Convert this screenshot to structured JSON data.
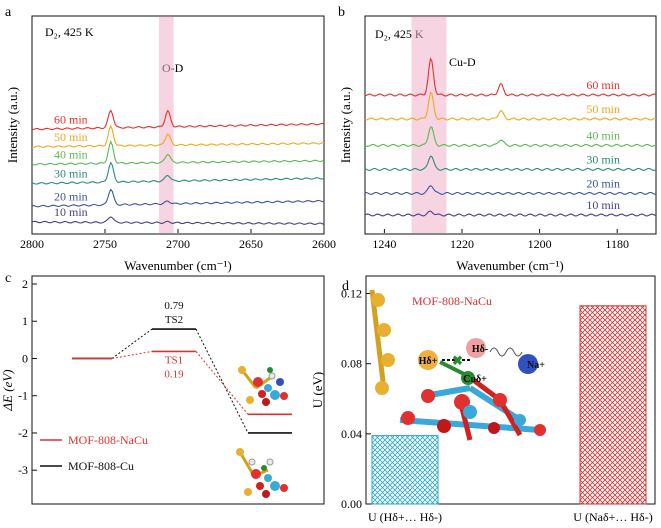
{
  "panels": {
    "a": {
      "label": "a",
      "condition": "D₂, 425 K",
      "band": "O-D"
    },
    "b": {
      "label": "b",
      "condition": "D₂, 425 K",
      "band": "Cu-D"
    },
    "c": {
      "label": "c"
    },
    "d": {
      "label": "d"
    }
  },
  "colors": {
    "t10": "#4b3f8c",
    "t20": "#3a56a0",
    "t30": "#2c8a80",
    "t40": "#5cb853",
    "t50": "#f0a818",
    "t60": "#e8302a",
    "pink": "#f0b0c8",
    "red": "#e03030",
    "black": "#111111",
    "bar_cyan": "#2aa8c8",
    "bar_red": "#d83030"
  },
  "chart_data": [
    {
      "id": "a",
      "type": "line",
      "xlabel": "Wavenumber (cm⁻¹)",
      "ylabel": "Intensity (a.u.)",
      "xlim": [
        2800,
        2600
      ],
      "xticks": [
        "2800",
        "2750",
        "2700",
        "2650",
        "2600"
      ],
      "xtick_values": [
        2800,
        2750,
        2700,
        2650,
        2600
      ],
      "highlight_x": [
        2713,
        2703
      ],
      "series": [
        {
          "name": "10 min",
          "color_key": "t10",
          "offset": 0.0,
          "peaks": [
            [
              2746,
              0.35
            ],
            [
              2707,
              0.05
            ]
          ],
          "slope": -0.1
        },
        {
          "name": "20 min",
          "color_key": "t20",
          "offset": 0.9,
          "peaks": [
            [
              2746,
              0.9
            ],
            [
              2707,
              0.15
            ]
          ],
          "slope": 0.3
        },
        {
          "name": "30 min",
          "color_key": "t30",
          "offset": 2.2,
          "peaks": [
            [
              2746,
              1.1
            ],
            [
              2707,
              0.35
            ]
          ],
          "slope": 0.3
        },
        {
          "name": "40 min",
          "color_key": "t40",
          "offset": 3.3,
          "peaks": [
            [
              2746,
              1.2
            ],
            [
              2707,
              0.5
            ]
          ],
          "slope": 0.2
        },
        {
          "name": "50 min",
          "color_key": "t50",
          "offset": 4.3,
          "peaks": [
            [
              2746,
              1.1
            ],
            [
              2707,
              0.65
            ]
          ],
          "slope": 0.2
        },
        {
          "name": "60 min",
          "color_key": "t60",
          "offset": 5.3,
          "peaks": [
            [
              2746,
              1.0
            ],
            [
              2707,
              0.9
            ]
          ],
          "slope": 0.3
        }
      ]
    },
    {
      "id": "b",
      "type": "line",
      "xlabel": "Wavenumber (cm⁻¹)",
      "ylabel": "Intensity (a.u.)",
      "xlim": [
        1245,
        1170
      ],
      "xticks": [
        "1240",
        "1220",
        "1200",
        "1180"
      ],
      "xtick_values": [
        1240,
        1220,
        1200,
        1180
      ],
      "highlight_x": [
        1233,
        1224
      ],
      "series": [
        {
          "name": "10 min",
          "color_key": "t10",
          "offset": 0.0,
          "peaks": [
            [
              1228,
              0.15
            ]
          ],
          "slope": 0.0
        },
        {
          "name": "20 min",
          "color_key": "t20",
          "offset": 0.9,
          "peaks": [
            [
              1228,
              0.35
            ]
          ],
          "slope": 0.0
        },
        {
          "name": "30 min",
          "color_key": "t30",
          "offset": 1.9,
          "peaks": [
            [
              1228,
              0.6
            ]
          ],
          "slope": 0.0
        },
        {
          "name": "40 min",
          "color_key": "t40",
          "offset": 2.9,
          "peaks": [
            [
              1228,
              0.8
            ],
            [
              1210,
              0.25
            ]
          ],
          "slope": 0.0
        },
        {
          "name": "50 min",
          "color_key": "t50",
          "offset": 4.0,
          "peaks": [
            [
              1228,
              1.1
            ],
            [
              1210,
              0.35
            ]
          ],
          "slope": 0.0
        },
        {
          "name": "60 min",
          "color_key": "t60",
          "offset": 5.0,
          "peaks": [
            [
              1228,
              1.5
            ],
            [
              1210,
              0.45
            ]
          ],
          "slope": 0.0
        }
      ]
    },
    {
      "id": "c",
      "type": "line",
      "ylabel": "ΔE (eV)",
      "ylim": [
        -3.8,
        2.0
      ],
      "yticks": [
        "2",
        "1",
        "0",
        "-1",
        "-2",
        "-3"
      ],
      "ytick_values": [
        2,
        1,
        0,
        -1,
        -2,
        -3
      ],
      "levels_red": [
        0,
        0.19,
        -1.5
      ],
      "levels_black": [
        0,
        0.79,
        -2.0
      ],
      "ts1": {
        "name": "TS1",
        "value": "0.19"
      },
      "ts2": {
        "name": "TS2",
        "value": "0.79"
      },
      "legend": [
        "MOF-808-NaCu",
        "MOF-808-Cu"
      ]
    },
    {
      "id": "d",
      "type": "bar",
      "ylabel": "U (eV)",
      "ylim": [
        0,
        0.13
      ],
      "yticks": [
        "0.00",
        "0.04",
        "0.08",
        "0.12"
      ],
      "ytick_values": [
        0,
        0.04,
        0.08,
        0.12
      ],
      "categories": [
        "U (Hδ+… Hδ-)",
        "U (Naδ+… Hδ-)"
      ],
      "values": [
        0.039,
        0.113
      ],
      "inset_title": "MOF-808-NaCu",
      "atom_labels": [
        "Hδ+",
        "Hδ-",
        "Cuδ+",
        "Na+"
      ]
    }
  ]
}
